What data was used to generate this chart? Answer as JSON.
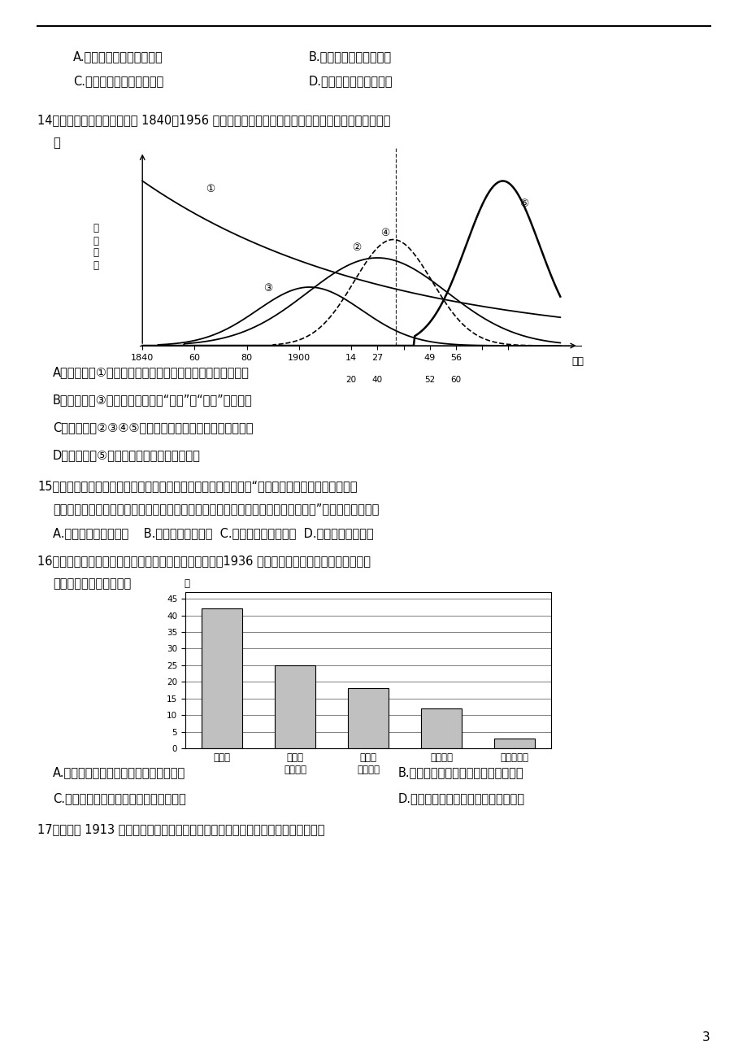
{
  "page_number": "3",
  "bg_color": "#ffffff",
  "text_color": "#000000",
  "q13_options_row1_a": "A.资本原始积累具有专制性",
  "q13_options_row1_b": "B.官商一体有悖经济规律",
  "q13_options_row2_c": "C.国家垄断资本主义已出现",
  "q13_options_row2_d": "D.近代化需突破体制束缚",
  "q14_text": "14．下列图中五条曲线反映了 1840－1956 年间我国五种经济形态的发展变化情况，其中表述错误的",
  "q14_text2": "是",
  "curve_ylabel": "所\n占\n比\n重",
  "curve_xlabel_main": "时间",
  "q14_opt_a": "A．经济形态①在中国近代虽然逐渐解体但始终占据主导地位",
  "q14_opt_b": "B．经济形态③对近代中国起到了“破坏”和“建设”双重作用",
  "q14_opt_c": "C．经济形态②③④⑤都在一定程度上推动了中国的近代化",
  "q14_opt_d": "D．经济形态⑤最能反映近代中国发展的主流",
  "q15_text": "15．民初的剪辫意外地促进了服饰的改革，诚如孙中山所指明的：“去辫之后，弱于易服，又急切不",
  "q15_text2": "能得一适当之服式以需应之，于是争购呢绒，竞从西制，致使外货畅销，内货阻滞。”由此可见（　　）",
  "q15_options": "A.剪辫巩固了革命成果    B.易服成为社会共识  C.服饰变革具有经济性  D.社会崇洋风气盛行",
  "q16_text": "16．下图是依据杜恂诚《中国近代经济史概论》绘制的《1936 年中国国内商品市场商品值所占比例",
  "q16_text2": "示意图》。它表明（　）",
  "bar_categories_1": "农产品",
  "bar_categories_2": "手工业\n制造产品",
  "bar_categories_3": "近代化\n工业产品",
  "bar_categories_4": "进口洋货",
  "bar_categories_5": "矿冶业产品",
  "bar_values": [
    42,
    25,
    18,
    12,
    3
  ],
  "bar_yticks": [
    0,
    5,
    10,
    15,
    20,
    25,
    30,
    35,
    40,
    45
  ],
  "q16_opt_a": "A.中国农民的生产生活方式发生根本变化",
  "q16_opt_b": "B.中国经济以农业为主且工业化水平低",
  "q16_opt_c": "C.商品供给因城市化水平大大提高而扩大",
  "q16_opt_d": "D.中国成为资本主义国家主要粮食产地",
  "q17_text": "17．下图是 1913 年的一个香烟盒的封面，作为直接证据，该史料可用于研究（　）"
}
